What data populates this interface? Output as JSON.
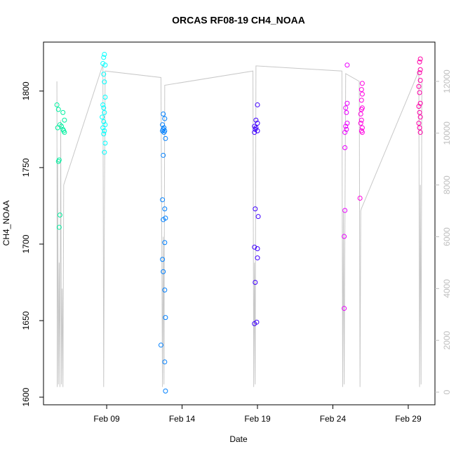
{
  "chart_data": {
    "type": "scatter",
    "title": "ORCAS RF08-19 CH4_NOAA",
    "x_label": "Date",
    "y_label": "CH4_NOAA",
    "xlim": [
      4.81,
      30.77
    ],
    "xticks": [
      {
        "value": 9,
        "label": "Feb 09"
      },
      {
        "value": 14,
        "label": "Feb 14"
      },
      {
        "value": 19,
        "label": "Feb 19"
      },
      {
        "value": 24,
        "label": "Feb 24"
      },
      {
        "value": 29,
        "label": "Feb 29"
      }
    ],
    "ylim": [
      1595,
      1832
    ],
    "yticks": [
      1600,
      1650,
      1700,
      1750,
      1800
    ],
    "y2lim": [
      -488,
      13517
    ],
    "y2ticks": [
      0,
      2000,
      4000,
      6000,
      8000,
      10000,
      12000
    ],
    "y2color": "#bebebe",
    "series": [
      {
        "color": "#00f0a0",
        "x": [
          5.7,
          5.8,
          6.1,
          6.2,
          5.9,
          6.0,
          5.75,
          6.1,
          6.15,
          6.2,
          5.85,
          5.8,
          5.9,
          5.85
        ],
        "values": [
          1791,
          1788,
          1786,
          1781,
          1778,
          1777,
          1776,
          1775,
          1774,
          1773,
          1755,
          1754,
          1719,
          1711
        ]
      },
      {
        "color": "#00ffff",
        "x": [
          8.85,
          8.8,
          8.75,
          8.9,
          8.8,
          8.85,
          8.9,
          8.75,
          8.8,
          8.85,
          8.7,
          8.8,
          8.9,
          8.75,
          8.85,
          8.8,
          8.9,
          8.85
        ],
        "values": [
          1824,
          1822,
          1818,
          1817,
          1811,
          1806,
          1796,
          1791,
          1789,
          1786,
          1783,
          1780,
          1778,
          1776,
          1774,
          1772,
          1766,
          1760
        ]
      },
      {
        "color": "#0080ff",
        "x": [
          12.75,
          12.85,
          12.7,
          12.8,
          12.75,
          12.85,
          12.7,
          12.8,
          12.9,
          12.75,
          12.7,
          12.85,
          12.9,
          12.75,
          12.85,
          12.7,
          12.75,
          12.85,
          12.9,
          12.6,
          12.85,
          12.9
        ],
        "values": [
          1785,
          1782,
          1778,
          1776,
          1775,
          1774,
          1774,
          1773,
          1769,
          1758,
          1729,
          1723,
          1717,
          1716,
          1701,
          1690,
          1682,
          1670,
          1652,
          1634,
          1623,
          1604
        ]
      },
      {
        "color": "#3f00ff",
        "x": [
          19.0,
          18.9,
          19.0,
          18.8,
          18.9,
          18.85,
          19.0,
          18.8,
          18.85,
          19.05,
          18.8,
          19.0,
          19.0,
          18.85,
          18.8,
          18.95
        ],
        "values": [
          1791,
          1781,
          1779,
          1777,
          1776,
          1775,
          1774,
          1773,
          1723,
          1718,
          1698,
          1697,
          1691,
          1675,
          1648,
          1649
        ]
      },
      {
        "color": "#ea00ff",
        "x": [
          24.95,
          24.95,
          24.85,
          24.9,
          24.95,
          24.85,
          24.9,
          24.8,
          24.8,
          24.8,
          24.75,
          24.75
        ],
        "values": [
          1817,
          1792,
          1789,
          1786,
          1779,
          1777,
          1775,
          1773,
          1763,
          1722,
          1705,
          1658
        ]
      },
      {
        "color": "#ff00e0",
        "x": [
          25.95,
          25.9,
          25.95,
          25.9,
          25.95,
          25.9,
          25.85,
          25.9,
          25.85,
          25.95,
          25.9,
          25.95,
          25.8
        ],
        "values": [
          1805,
          1801,
          1798,
          1794,
          1789,
          1788,
          1785,
          1781,
          1779,
          1776,
          1774,
          1773,
          1730
        ]
      },
      {
        "color": "#ff00a8",
        "x": [
          29.8,
          29.75,
          29.8,
          29.75,
          29.8,
          29.7,
          29.75,
          29.8,
          29.7,
          29.75,
          29.8,
          29.7,
          29.75,
          29.8
        ],
        "values": [
          1821,
          1819,
          1814,
          1812,
          1807,
          1803,
          1799,
          1792,
          1790,
          1786,
          1783,
          1779,
          1776,
          1773
        ]
      },
      {
        "type": "line",
        "axis": "y2",
        "color": "#c8c8c8",
        "x": [
          5.7,
          5.72,
          5.75,
          5.8,
          5.85,
          5.9,
          5.95,
          6.0,
          6.05,
          6.1,
          6.15,
          8.75,
          8.8,
          8.85,
          8.9,
          12.6,
          12.7,
          12.75,
          12.8,
          12.85,
          18.7,
          18.75,
          18.8,
          18.85,
          18.9,
          24.6,
          24.65,
          24.7,
          24.75,
          24.8,
          24.85,
          25.75,
          25.8,
          25.85,
          25.9,
          29.7,
          29.75,
          29.8,
          29.85,
          29.9
        ],
        "values": [
          12000,
          200,
          9000,
          300,
          5000,
          200,
          10500,
          300,
          4000,
          200,
          8000,
          12650,
          200,
          7000,
          12400,
          12150,
          200,
          6000,
          300,
          11850,
          12400,
          200,
          5000,
          300,
          12600,
          12400,
          200,
          7000,
          300,
          6500,
          12300,
          12000,
          200,
          7000,
          7100,
          12400,
          200,
          8000,
          300,
          12000
        ]
      }
    ]
  }
}
